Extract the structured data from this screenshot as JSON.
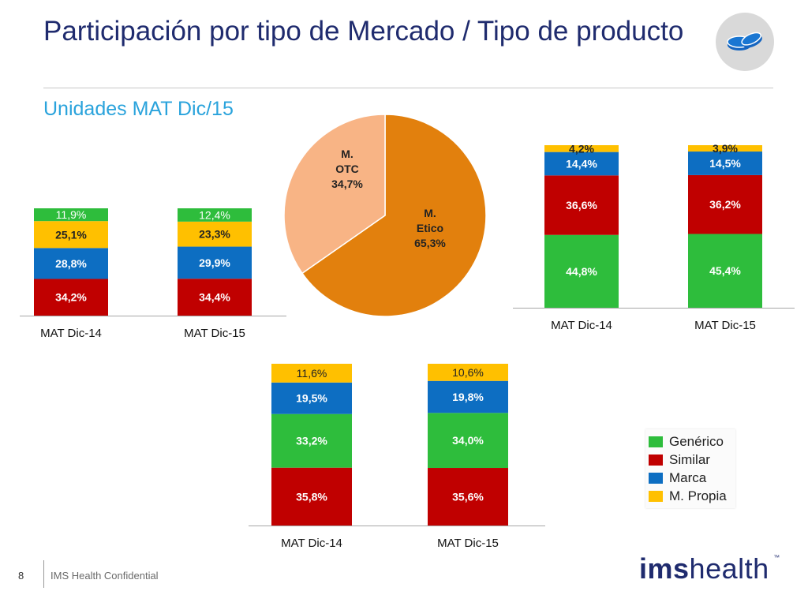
{
  "header": {
    "title": "Participación por tipo de Mercado / Tipo de producto",
    "subtitle": "Unidades MAT Dic/15"
  },
  "footer": {
    "page_number": "8",
    "confidential_text": "IMS Health Confidential",
    "brand_ims": "ims",
    "brand_health": "health",
    "brand_tm": "™"
  },
  "legend": [
    {
      "label": "Genérico",
      "color": "#2ebd3c"
    },
    {
      "label": "Similar",
      "color": "#c00000"
    },
    {
      "label": "Marca",
      "color": "#0d6ec2"
    },
    {
      "label": "M. Propia",
      "color": "#ffc000"
    }
  ],
  "icon": "pills-icon",
  "chart_data": [
    {
      "type": "bar",
      "stacked": true,
      "categories": [
        "MAT Dic-14",
        "MAT Dic-15"
      ],
      "series": [
        {
          "name": "Similar",
          "color": "#c00000",
          "values": [
            34.2,
            34.4
          ],
          "labels": [
            "34,2%",
            "34,4%"
          ]
        },
        {
          "name": "Marca",
          "color": "#0d6ec2",
          "values": [
            28.8,
            29.9
          ],
          "labels": [
            "28,8%",
            "29,9%"
          ]
        },
        {
          "name": "M. Propia",
          "color": "#ffc000",
          "values": [
            25.1,
            23.3
          ],
          "labels": [
            "25,1%",
            "23,3%"
          ]
        },
        {
          "name": "Genérico",
          "color": "#2ebd3c",
          "values": [
            11.9,
            12.4
          ],
          "labels": [
            "11,9%",
            "12,4%"
          ]
        }
      ]
    },
    {
      "type": "pie",
      "slices": [
        {
          "name": "M. Etico",
          "value": 65.3,
          "label_lines": [
            "M.",
            "Etico",
            "65,3%"
          ],
          "color": "#e2800d"
        },
        {
          "name": "M. OTC",
          "value": 34.7,
          "label_lines": [
            "M.",
            "OTC",
            "34,7%"
          ],
          "color": "#f8b485"
        }
      ]
    },
    {
      "type": "bar",
      "stacked": true,
      "categories": [
        "MAT Dic-14",
        "MAT Dic-15"
      ],
      "series": [
        {
          "name": "Genérico",
          "color": "#2ebd3c",
          "values": [
            44.8,
            45.4
          ],
          "labels": [
            "44,8%",
            "45,4%"
          ]
        },
        {
          "name": "Similar",
          "color": "#c00000",
          "values": [
            36.6,
            36.2
          ],
          "labels": [
            "36,6%",
            "36,2%"
          ]
        },
        {
          "name": "Marca",
          "color": "#0d6ec2",
          "values": [
            14.4,
            14.5
          ],
          "labels": [
            "14,4%",
            "14,5%"
          ]
        },
        {
          "name": "M. Propia",
          "color": "#ffc000",
          "values": [
            4.2,
            3.9
          ],
          "labels": [
            "4,2%",
            "3,9%"
          ]
        }
      ]
    },
    {
      "type": "bar",
      "stacked": true,
      "categories": [
        "MAT Dic-14",
        "MAT Dic-15"
      ],
      "series": [
        {
          "name": "Similar",
          "color": "#c00000",
          "values": [
            35.8,
            35.6
          ],
          "labels": [
            "35,8%",
            "35,6%"
          ]
        },
        {
          "name": "Genérico",
          "color": "#2ebd3c",
          "values": [
            33.2,
            34.0
          ],
          "labels": [
            "33,2%",
            "34,0%"
          ]
        },
        {
          "name": "Marca",
          "color": "#0d6ec2",
          "values": [
            19.5,
            19.8
          ],
          "labels": [
            "19,5%",
            "19,8%"
          ]
        },
        {
          "name": "M. Propia",
          "color": "#ffc000",
          "values": [
            11.6,
            10.6
          ],
          "labels": [
            "11,6%",
            "10,6%"
          ]
        }
      ]
    }
  ]
}
